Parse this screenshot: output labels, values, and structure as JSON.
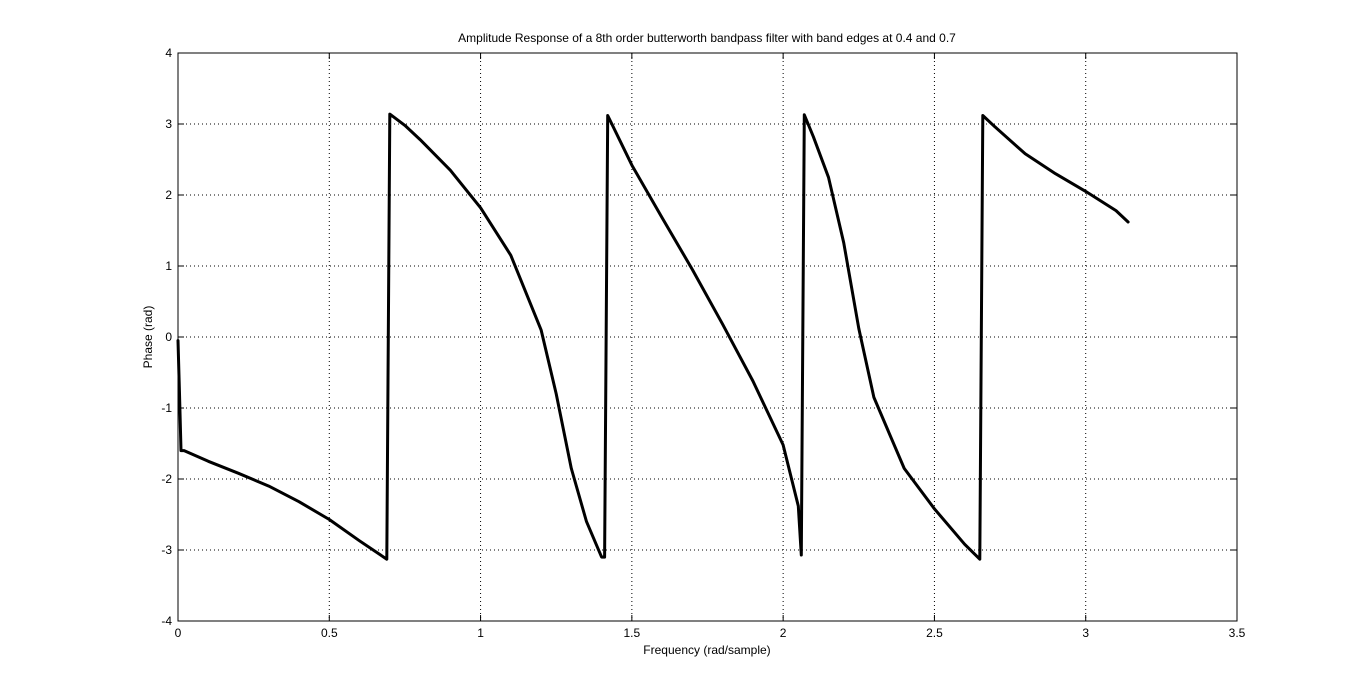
{
  "chart_data": {
    "type": "line",
    "title": "Amplitude Response of a 8th order butterworth bandpass filter with band edges at 0.4 and 0.7",
    "xlabel": "Frequency (rad/sample)",
    "ylabel": "Phase (rad)",
    "xlim": [
      0,
      3.5
    ],
    "ylim": [
      -4,
      4
    ],
    "xticks": [
      0,
      0.5,
      1,
      1.5,
      2,
      2.5,
      3,
      3.5
    ],
    "xtick_labels": [
      "0",
      "0.5",
      "1",
      "1.5",
      "2",
      "2.5",
      "3",
      "3.5"
    ],
    "yticks": [
      -4,
      -3,
      -2,
      -1,
      0,
      1,
      2,
      3,
      4
    ],
    "ytick_labels": [
      "-4",
      "-3",
      "-2",
      "-1",
      "0",
      "1",
      "2",
      "3",
      "4"
    ],
    "grid": true,
    "grid_style": "dotted",
    "line_color": "#000000",
    "series": [
      {
        "x": [
          0,
          0.005,
          0.01,
          0.02,
          0.1,
          0.2,
          0.3,
          0.4,
          0.5,
          0.6,
          0.69,
          0.7,
          0.75,
          0.8,
          0.9,
          1.0,
          1.1,
          1.2,
          1.25,
          1.3,
          1.35,
          1.4,
          1.41,
          1.42,
          1.5,
          1.6,
          1.7,
          1.8,
          1.9,
          2.0,
          2.05,
          2.06,
          2.07,
          2.1,
          2.15,
          2.2,
          2.25,
          2.3,
          2.4,
          2.5,
          2.6,
          2.65,
          2.66,
          2.7,
          2.8,
          2.9,
          3.0,
          3.1,
          3.14
        ],
        "y": [
          -0.05,
          -0.8,
          -1.6,
          -1.6,
          -1.75,
          -1.92,
          -2.1,
          -2.32,
          -2.57,
          -2.87,
          -3.13,
          3.14,
          2.98,
          2.78,
          2.35,
          1.82,
          1.15,
          0.1,
          -0.8,
          -1.85,
          -2.6,
          -3.1,
          -3.1,
          3.12,
          2.42,
          1.68,
          0.95,
          0.18,
          -0.62,
          -1.52,
          -2.38,
          -3.07,
          3.13,
          2.82,
          2.25,
          1.33,
          0.12,
          -0.85,
          -1.85,
          -2.42,
          -2.92,
          -3.13,
          3.12,
          2.96,
          2.58,
          2.3,
          2.05,
          1.78,
          1.62
        ]
      }
    ]
  }
}
